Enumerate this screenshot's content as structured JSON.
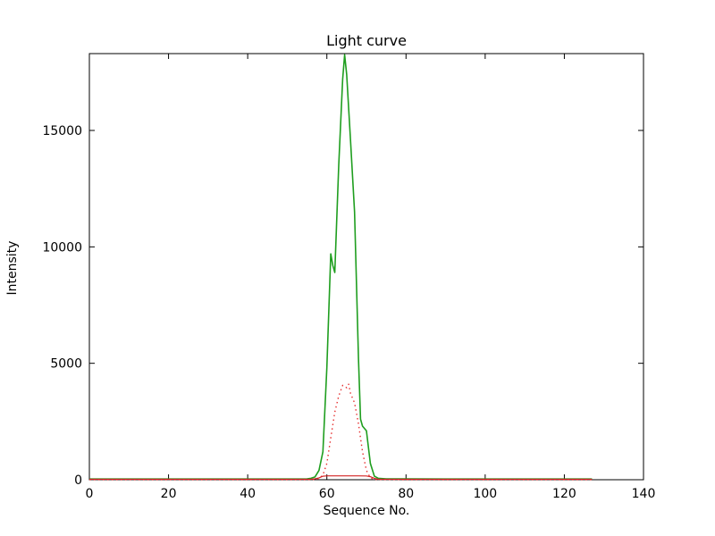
{
  "figure": {
    "background": "#ffffff",
    "frame_color": "#000000"
  },
  "chart_data": {
    "type": "line",
    "title": "Light curve",
    "xlabel": "Sequence No.",
    "ylabel": "Intensity",
    "xlim": [
      0,
      140
    ],
    "ylim": [
      0,
      18300
    ],
    "xticks": [
      0,
      20,
      40,
      60,
      80,
      100,
      120,
      140
    ],
    "yticks": [
      0,
      5000,
      10000,
      15000
    ],
    "grid": false,
    "legend": null,
    "series": [
      {
        "name": "main-intensity-green-solid",
        "color": "#1f9e1f",
        "style": "solid",
        "width": 1.6,
        "x": [
          0,
          5,
          10,
          15,
          20,
          25,
          30,
          35,
          40,
          45,
          50,
          55,
          56,
          57,
          58,
          59,
          60,
          61,
          61.5,
          62,
          63,
          64,
          64.5,
          65,
          66,
          67,
          68,
          68.5,
          69,
          70,
          71,
          72,
          73,
          75,
          80,
          90,
          100,
          110,
          120,
          127
        ],
        "y": [
          30,
          30,
          30,
          30,
          30,
          30,
          30,
          30,
          30,
          30,
          30,
          40,
          60,
          120,
          400,
          1200,
          4800,
          9700,
          9200,
          8900,
          13500,
          17200,
          18250,
          17400,
          14500,
          11500,
          5200,
          2600,
          2300,
          2100,
          700,
          150,
          60,
          40,
          35,
          30,
          30,
          30,
          30,
          30
        ]
      },
      {
        "name": "secondary-intensity-red-dotted",
        "color": "#e63030",
        "style": "dotted",
        "width": 1.4,
        "x": [
          0,
          20,
          40,
          55,
          57,
          58,
          59,
          60,
          61,
          62,
          63,
          64,
          65,
          65.5,
          66,
          67,
          68,
          69,
          70,
          71,
          72,
          80,
          100,
          120,
          127
        ],
        "y": [
          5,
          5,
          5,
          5,
          10,
          50,
          200,
          700,
          1800,
          2900,
          3600,
          4050,
          3950,
          4100,
          3700,
          3300,
          2400,
          1200,
          400,
          80,
          10,
          5,
          5,
          5,
          5
        ]
      },
      {
        "name": "baseline-red-solid",
        "color": "#d42424",
        "style": "solid",
        "width": 1.2,
        "x": [
          0,
          20,
          40,
          56,
          57,
          58,
          59,
          60,
          64,
          68,
          70,
          71,
          72,
          73,
          80,
          100,
          120,
          127
        ],
        "y": [
          20,
          20,
          20,
          20,
          40,
          80,
          150,
          165,
          165,
          165,
          160,
          130,
          60,
          20,
          20,
          20,
          20,
          20
        ]
      }
    ]
  }
}
